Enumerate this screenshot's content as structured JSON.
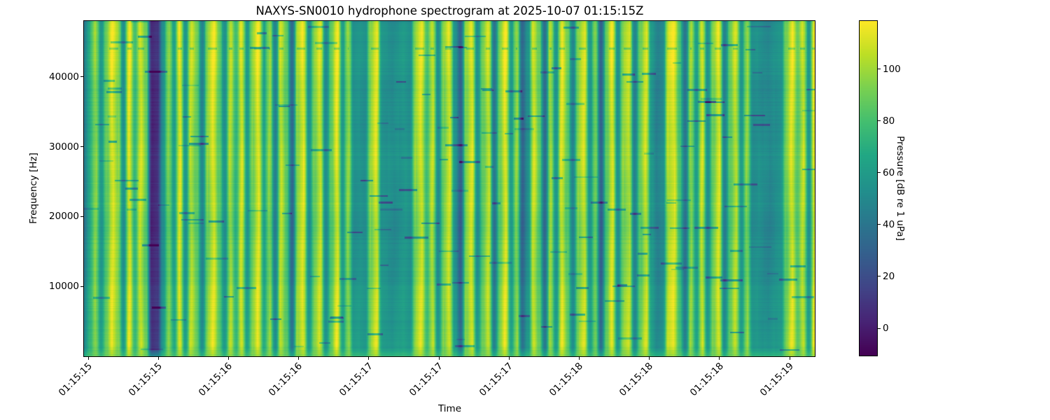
{
  "figure": {
    "title": "NAXYS-SN0010 hydrophone spectrogram at 2025-10-07 01:15:15Z",
    "xlabel": "Time",
    "ylabel": "Frequency [Hz]",
    "colorbar_label": "Pressure [dB re 1 uPa]"
  },
  "chart_data": {
    "type": "heatmap",
    "subtype": "spectrogram",
    "title": "NAXYS-SN0010 hydrophone spectrogram at 2025-10-07 01:15:15Z",
    "xlabel": "Time",
    "ylabel": "Frequency [Hz]",
    "x_tick_labels": [
      "01:15:15",
      "01:15:15",
      "01:15:16",
      "01:15:16",
      "01:15:17",
      "01:15:17",
      "01:15:17",
      "01:15:18",
      "01:15:18",
      "01:15:18",
      "01:15:19"
    ],
    "y_ticks_hz": [
      10000,
      20000,
      30000,
      40000
    ],
    "y_range_hz": [
      0,
      48000
    ],
    "time_span": "2025-10-07 01:15:15Z to 01:15:19Z",
    "grid": false,
    "colorbar": {
      "label": "Pressure [dB re 1 uPa]",
      "ticks": [
        0,
        20,
        40,
        60,
        80,
        100
      ],
      "vmin": -10.5,
      "vmax": 118.5,
      "colormap": "viridis",
      "position": "right"
    },
    "colormap_stops": [
      {
        "t": 0.0,
        "c": "#440154"
      },
      {
        "t": 0.1,
        "c": "#482475"
      },
      {
        "t": 0.2,
        "c": "#414487"
      },
      {
        "t": 0.3,
        "c": "#355f8d"
      },
      {
        "t": 0.4,
        "c": "#2a788e"
      },
      {
        "t": 0.5,
        "c": "#21918c"
      },
      {
        "t": 0.6,
        "c": "#22a884"
      },
      {
        "t": 0.7,
        "c": "#44bf70"
      },
      {
        "t": 0.8,
        "c": "#7ad151"
      },
      {
        "t": 0.9,
        "c": "#bddf26"
      },
      {
        "t": 1.0,
        "c": "#fde725"
      }
    ],
    "time_profile_db": [
      48,
      72,
      95,
      62,
      88,
      112,
      96,
      58,
      112,
      75,
      108,
      88,
      8,
      12,
      58,
      92,
      66,
      112,
      60,
      104,
      88,
      52,
      95,
      112,
      86,
      58,
      102,
      74,
      110,
      62,
      93,
      113,
      68,
      96,
      50,
      106,
      85,
      38,
      98,
      112,
      58,
      91,
      108,
      55,
      86,
      113,
      64,
      96,
      58,
      60,
      57,
      95,
      111,
      60,
      58,
      56,
      59,
      62,
      58,
      96,
      110,
      78,
      105,
      55,
      92,
      109,
      60,
      34,
      95,
      111,
      57,
      88,
      106,
      44,
      90,
      113,
      64,
      96,
      36,
      58,
      108,
      86,
      40,
      100,
      60,
      111,
      87,
      52,
      95,
      109,
      61,
      90,
      34,
      86,
      112,
      57,
      95,
      104,
      50,
      88,
      108,
      62,
      50,
      55,
      105,
      112,
      80,
      44,
      96,
      64,
      108,
      57,
      91,
      111,
      50,
      86,
      105,
      62,
      95,
      56,
      58,
      55,
      53,
      57,
      60,
      90,
      111,
      85,
      106,
      60,
      112
    ],
    "texture": {
      "description": "vertical acoustic bursts (bright yellow ~110 dB) over teal ~60 dB background, thin horizontal dark notch dashes, notch line near 44 kHz",
      "row_noise_db": 2.5,
      "notch_count": 170,
      "notch_depth_db": [
        12,
        40
      ],
      "seed": 123456789
    }
  }
}
